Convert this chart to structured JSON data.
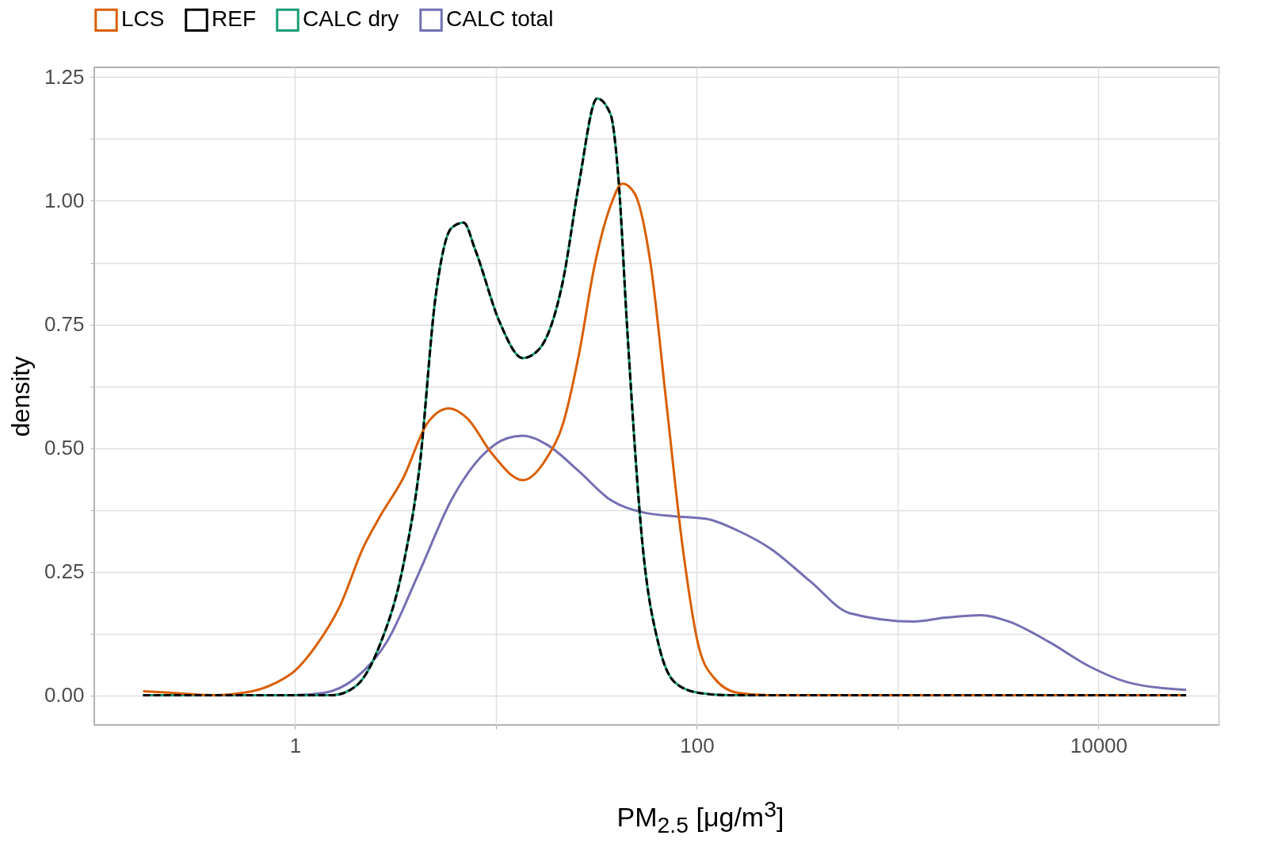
{
  "chart_data": {
    "type": "line",
    "xlabel": "PM$_{2.5}$ [μg/m$^{3}$]",
    "ylabel": "density",
    "log": "x",
    "grid": true,
    "legend": "top left",
    "marker": "none",
    "xlim": [
      0.1,
      40000
    ],
    "xticks": [
      1,
      {
        "value": 10,
        "label": null
      },
      100,
      {
        "value": 1000,
        "label": null
      },
      10000
    ],
    "ylim": [
      -0.06,
      1.27
    ],
    "yticks": [
      {
        "value": 0,
        "label": "0.00"
      },
      {
        "value": 0.125,
        "label": null
      },
      {
        "value": 0.25,
        "label": "0.25"
      },
      {
        "value": 0.375,
        "label": null
      },
      {
        "value": 0.5,
        "label": "0.50"
      },
      {
        "value": 0.625,
        "label": null
      },
      {
        "value": 0.75,
        "label": "0.75"
      },
      {
        "value": 0.875,
        "label": null
      },
      {
        "value": 1,
        "label": "1.00"
      },
      {
        "value": 1.125,
        "label": null
      },
      {
        "value": 1.25,
        "label": "1.25"
      }
    ],
    "series": [
      {
        "name": "LCS",
        "color": "#d95f02",
        "line_style": "solid",
        "x": [
          0.175,
          0.245,
          0.387,
          0.61,
          0.8,
          1,
          1.27,
          1.67,
          2.19,
          2.63,
          3.46,
          4.55,
          5.83,
          7.2,
          9.5,
          13.6,
          17.9,
          21.6,
          25.9,
          31,
          37.2,
          42.7,
          49,
          59,
          70.6,
          85,
          102,
          122,
          160,
          232,
          27300
        ],
        "values": [
          0.008,
          0.005,
          0,
          0.008,
          0.025,
          0.05,
          0.1,
          0.18,
          0.3,
          0.36,
          0.44,
          0.55,
          0.58,
          0.56,
          0.49,
          0.435,
          0.48,
          0.55,
          0.69,
          0.87,
          0.99,
          1.035,
          1.015,
          0.87,
          0.59,
          0.3,
          0.1,
          0.035,
          0.005,
          0,
          0
        ]
      },
      {
        "name": "REF",
        "color": "#000000",
        "line_style": "dashed",
        "x": [
          0.175,
          1.52,
          2,
          2.63,
          3.46,
          4.16,
          5,
          6,
          6.9,
          7.9,
          10.4,
          13.6,
          16.4,
          21.6,
          25.9,
          31.9,
          37.2,
          40.9,
          44.8,
          53.9,
          64.8,
          77.8,
          102,
          147,
          27300
        ],
        "values": [
          0,
          0,
          0.018,
          0.1,
          0.264,
          0.46,
          0.805,
          0.945,
          0.956,
          0.9,
          0.756,
          0.682,
          0.7,
          0.84,
          1.035,
          1.207,
          1.175,
          1.035,
          0.756,
          0.297,
          0.1,
          0.026,
          0.005,
          0,
          0
        ]
      },
      {
        "name": "CALC dry",
        "color": "#1b9e77",
        "line_style": "solid",
        "x": [
          0.175,
          1.52,
          2,
          2.63,
          3.46,
          4.16,
          5,
          6,
          6.9,
          7.9,
          10.4,
          13.6,
          16.4,
          21.6,
          25.9,
          31.9,
          37.2,
          40.9,
          44.8,
          53.9,
          64.8,
          77.8,
          102,
          147,
          27300
        ],
        "values": [
          0,
          0,
          0.018,
          0.1,
          0.264,
          0.46,
          0.805,
          0.945,
          0.956,
          0.9,
          0.756,
          0.682,
          0.7,
          0.84,
          1.035,
          1.207,
          1.175,
          1.035,
          0.756,
          0.297,
          0.1,
          0.026,
          0.005,
          0,
          0
        ]
      },
      {
        "name": "CALC total",
        "color": "#7570b3",
        "line_style": "solid",
        "x": [
          0.175,
          0.96,
          1.39,
          2,
          2.88,
          4.16,
          6,
          8.6,
          11.4,
          13.6,
          17.9,
          25.9,
          37.2,
          53.9,
          77.8,
          111,
          160,
          232,
          366,
          578,
          1200,
          1730,
          2610,
          3590,
          5670,
          8960,
          14100,
          27300
        ],
        "values": [
          0,
          0,
          0.005,
          0.035,
          0.11,
          0.25,
          0.395,
          0.486,
          0.52,
          0.525,
          0.507,
          0.453,
          0.395,
          0.37,
          0.362,
          0.357,
          0.333,
          0.297,
          0.231,
          0.166,
          0.149,
          0.157,
          0.162,
          0.149,
          0.108,
          0.059,
          0.026,
          0.011
        ]
      }
    ]
  }
}
